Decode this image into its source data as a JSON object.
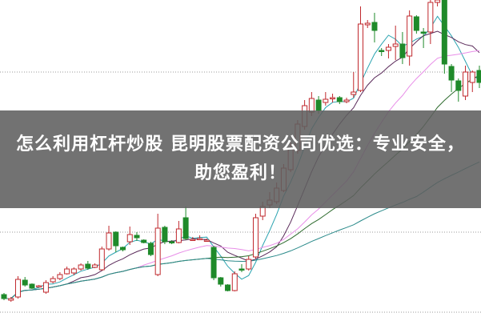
{
  "banner": {
    "title": "怎么利用杠杆炒股 昆明股票配资公司优选：专业安全，助您盈利！"
  },
  "chart_data": {
    "type": "candlestick",
    "title": "",
    "xlabel": "",
    "ylabel": "",
    "ylim": [
      0,
      400
    ],
    "grid": true,
    "gridlines": [
      310,
      110,
      10
    ],
    "up_color": "#c0282d",
    "down_color": "#1f8a2a",
    "moving_average_periods": [
      5,
      10,
      20,
      30,
      60
    ],
    "moving_average_colors": [
      "#2aa3b0",
      "#5a2a5a",
      "#e88ee8",
      "#2e6b2e",
      "#2a8a8a"
    ],
    "candles": [
      [
        32,
        27,
        34,
        25
      ],
      [
        25,
        27,
        29,
        23
      ],
      [
        29,
        51,
        55,
        27
      ],
      [
        50,
        44,
        54,
        42
      ],
      [
        45,
        40,
        46,
        39
      ],
      [
        42,
        43,
        44,
        41
      ],
      [
        35,
        47,
        50,
        33
      ],
      [
        48,
        52,
        55,
        46
      ],
      [
        52,
        57,
        60,
        50
      ],
      [
        58,
        64,
        67,
        57
      ],
      [
        59,
        64,
        66,
        56
      ],
      [
        64,
        69,
        71,
        62
      ],
      [
        70,
        65,
        74,
        63
      ],
      [
        66,
        69,
        71,
        65
      ],
      [
        63,
        89,
        92,
        62
      ],
      [
        89,
        109,
        118,
        87
      ],
      [
        110,
        93,
        111,
        85
      ],
      [
        91,
        88,
        92,
        86
      ],
      [
        98,
        107,
        117,
        94
      ],
      [
        106,
        103,
        110,
        99
      ],
      [
        100,
        97,
        101,
        96
      ],
      [
        96,
        82,
        98,
        80
      ],
      [
        57,
        115,
        133,
        55
      ],
      [
        116,
        98,
        118,
        95
      ],
      [
        98,
        97,
        100,
        95
      ],
      [
        97,
        114,
        124,
        96
      ],
      [
        128,
        102,
        142,
        100
      ],
      [
        101,
        101,
        104,
        99
      ],
      [
        102,
        102,
        106,
        100
      ],
      [
        100,
        100,
        102,
        98
      ],
      [
        91,
        53,
        93,
        50
      ],
      [
        53,
        45,
        54,
        42
      ],
      [
        44,
        37,
        45,
        36
      ],
      [
        37,
        58,
        61,
        36
      ],
      [
        64,
        63,
        70,
        60
      ],
      [
        64,
        76,
        80,
        62
      ],
      [
        79,
        128,
        133,
        77
      ],
      [
        130,
        142,
        148,
        125
      ],
      [
        144,
        150,
        160,
        140
      ],
      [
        148,
        165,
        172,
        145
      ],
      [
        162,
        190,
        195,
        160
      ],
      [
        188,
        215,
        222,
        185
      ],
      [
        212,
        245,
        250,
        208
      ],
      [
        242,
        268,
        275,
        238
      ],
      [
        260,
        277,
        285,
        255
      ],
      [
        275,
        262,
        280,
        258
      ],
      [
        272,
        276,
        285,
        268
      ],
      [
        277,
        278,
        283,
        272
      ],
      [
        278,
        273,
        280,
        270
      ],
      [
        273,
        275,
        278,
        271
      ],
      [
        282,
        285,
        310,
        278
      ],
      [
        287,
        370,
        392,
        285
      ],
      [
        369,
        371,
        375,
        365
      ],
      [
        372,
        362,
        384,
        347
      ],
      [
        337,
        336,
        340,
        330
      ],
      [
        337,
        341,
        345,
        327
      ],
      [
        342,
        345,
        368,
        325
      ],
      [
        345,
        328,
        360,
        320
      ],
      [
        330,
        380,
        387,
        318
      ],
      [
        379,
        362,
        381,
        358
      ],
      [
        360,
        359,
        365,
        340
      ],
      [
        360,
        397,
        400,
        345
      ],
      [
        397,
        400,
        402,
        392
      ],
      [
        400,
        320,
        402,
        308
      ],
      [
        317,
        300,
        320,
        285
      ],
      [
        299,
        287,
        302,
        273
      ],
      [
        280,
        310,
        318,
        275
      ],
      [
        297,
        310,
        312,
        285
      ],
      [
        312,
        297,
        318,
        290
      ]
    ]
  }
}
